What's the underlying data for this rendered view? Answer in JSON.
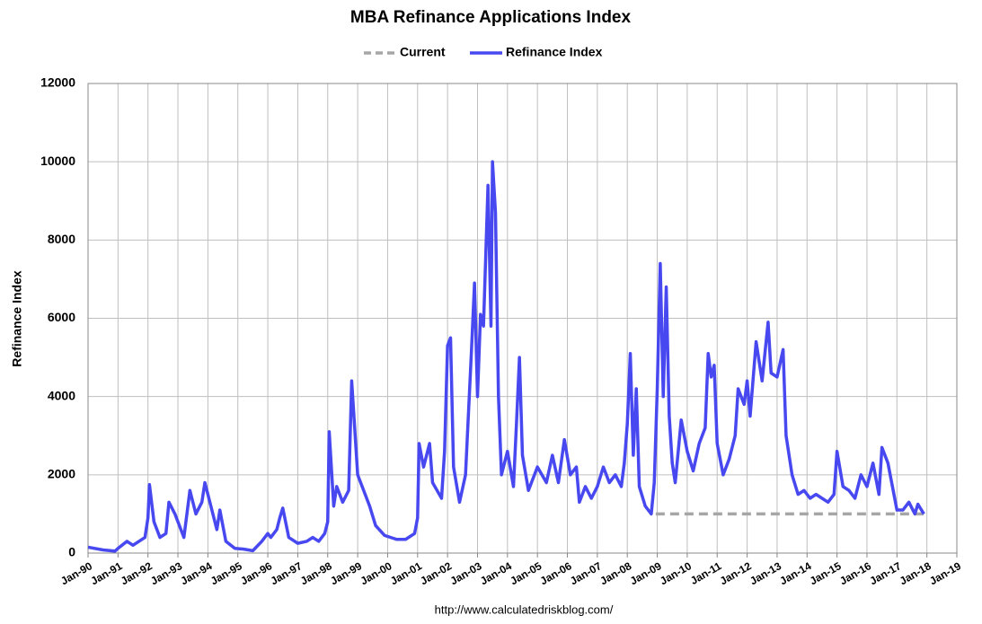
{
  "chart_data": {
    "type": "line",
    "title": "MBA Refinance Applications Index",
    "ylabel": "Refinance Index",
    "source": "http://www.calculatedriskblog.com/",
    "xlim": [
      1990,
      2019
    ],
    "ylim": [
      0,
      12000
    ],
    "yticks": [
      0,
      2000,
      4000,
      6000,
      8000,
      10000,
      12000
    ],
    "grid": true,
    "legend": "top",
    "xticks": [
      {
        "value": 1990,
        "label": "Jan-90"
      },
      {
        "value": 1991,
        "label": "Jan-91"
      },
      {
        "value": 1992,
        "label": "Jan-92"
      },
      {
        "value": 1993,
        "label": "Jan-93"
      },
      {
        "value": 1994,
        "label": "Jan-94"
      },
      {
        "value": 1995,
        "label": "Jan-95"
      },
      {
        "value": 1996,
        "label": "Jan-96"
      },
      {
        "value": 1997,
        "label": "Jan-97"
      },
      {
        "value": 1998,
        "label": "Jan-98"
      },
      {
        "value": 1999,
        "label": "Jan-99"
      },
      {
        "value": 2000,
        "label": "Jan-00"
      },
      {
        "value": 2001,
        "label": "Jan-01"
      },
      {
        "value": 2002,
        "label": "Jan-02"
      },
      {
        "value": 2003,
        "label": "Jan-03"
      },
      {
        "value": 2004,
        "label": "Jan-04"
      },
      {
        "value": 2005,
        "label": "Jan-05"
      },
      {
        "value": 2006,
        "label": "Jan-06"
      },
      {
        "value": 2007,
        "label": "Jan-07"
      },
      {
        "value": 2008,
        "label": "Jan-08"
      },
      {
        "value": 2009,
        "label": "Jan-09"
      },
      {
        "value": 2010,
        "label": "Jan-10"
      },
      {
        "value": 2011,
        "label": "Jan-11"
      },
      {
        "value": 2012,
        "label": "Jan-12"
      },
      {
        "value": 2013,
        "label": "Jan-13"
      },
      {
        "value": 2014,
        "label": "Jan-14"
      },
      {
        "value": 2015,
        "label": "Jan-15"
      },
      {
        "value": 2016,
        "label": "Jan-16"
      },
      {
        "value": 2017,
        "label": "Jan-17"
      },
      {
        "value": 2018,
        "label": "Jan-18"
      },
      {
        "value": 2019,
        "label": "Jan-19"
      }
    ],
    "series": [
      {
        "name": "Current",
        "color": "#a6a6a6",
        "dashed": true,
        "x": [
          2008.95,
          2017.95
        ],
        "values": [
          1000,
          1000
        ]
      },
      {
        "name": "Refinance Index",
        "color": "#4848f0",
        "dashed": false,
        "x": [
          1990.0,
          1990.5,
          1990.9,
          1991.0,
          1991.3,
          1991.5,
          1991.9,
          1992.0,
          1992.05,
          1992.2,
          1992.4,
          1992.6,
          1992.7,
          1992.9,
          1993.1,
          1993.2,
          1993.4,
          1993.6,
          1993.8,
          1993.9,
          1994.1,
          1994.3,
          1994.4,
          1994.6,
          1994.9,
          1995.2,
          1995.5,
          1995.8,
          1996.0,
          1996.1,
          1996.3,
          1996.4,
          1996.5,
          1996.7,
          1997.0,
          1997.3,
          1997.5,
          1997.7,
          1997.9,
          1998.0,
          1998.05,
          1998.2,
          1998.3,
          1998.5,
          1998.7,
          1998.8,
          1999.0,
          1999.2,
          1999.4,
          1999.6,
          1999.9,
          2000.3,
          2000.6,
          2000.9,
          2001.0,
          2001.05,
          2001.2,
          2001.4,
          2001.5,
          2001.8,
          2001.9,
          2002.0,
          2002.1,
          2002.2,
          2002.4,
          2002.6,
          2002.8,
          2002.9,
          2003.0,
          2003.1,
          2003.2,
          2003.35,
          2003.45,
          2003.5,
          2003.6,
          2003.7,
          2003.8,
          2004.0,
          2004.2,
          2004.3,
          2004.4,
          2004.5,
          2004.7,
          2004.9,
          2005.0,
          2005.3,
          2005.5,
          2005.7,
          2005.9,
          2006.1,
          2006.3,
          2006.4,
          2006.6,
          2006.8,
          2007.0,
          2007.2,
          2007.4,
          2007.6,
          2007.8,
          2007.9,
          2008.0,
          2008.1,
          2008.2,
          2008.3,
          2008.4,
          2008.6,
          2008.8,
          2008.9,
          2009.0,
          2009.1,
          2009.2,
          2009.3,
          2009.4,
          2009.5,
          2009.6,
          2009.8,
          2010.0,
          2010.2,
          2010.4,
          2010.6,
          2010.7,
          2010.8,
          2010.9,
          2011.0,
          2011.2,
          2011.4,
          2011.6,
          2011.7,
          2011.9,
          2012.0,
          2012.1,
          2012.3,
          2012.5,
          2012.7,
          2012.8,
          2013.0,
          2013.2,
          2013.3,
          2013.5,
          2013.7,
          2013.9,
          2014.1,
          2014.3,
          2014.5,
          2014.7,
          2014.9,
          2015.0,
          2015.2,
          2015.4,
          2015.6,
          2015.8,
          2016.0,
          2016.2,
          2016.4,
          2016.5,
          2016.7,
          2016.9,
          2017.0,
          2017.2,
          2017.4,
          2017.6,
          2017.7,
          2017.9
        ],
        "values": [
          150,
          80,
          50,
          120,
          300,
          200,
          400,
          900,
          1750,
          800,
          400,
          500,
          1300,
          1000,
          600,
          400,
          1600,
          1000,
          1300,
          1800,
          1200,
          600,
          1100,
          300,
          120,
          100,
          60,
          300,
          500,
          400,
          600,
          900,
          1150,
          400,
          250,
          300,
          400,
          300,
          500,
          800,
          3100,
          1200,
          1700,
          1300,
          1600,
          4400,
          2000,
          1600,
          1200,
          700,
          450,
          350,
          350,
          500,
          900,
          2800,
          2200,
          2800,
          1800,
          1400,
          2600,
          5300,
          5500,
          2200,
          1300,
          2000,
          5200,
          6900,
          4000,
          6100,
          5800,
          9400,
          5800,
          10000,
          8700,
          4000,
          2000,
          2600,
          1700,
          3300,
          5000,
          2500,
          1600,
          2000,
          2200,
          1800,
          2500,
          1800,
          2900,
          2000,
          2200,
          1300,
          1700,
          1400,
          1700,
          2200,
          1800,
          2000,
          1700,
          2300,
          3300,
          5100,
          2500,
          4200,
          1700,
          1200,
          1000,
          1800,
          4200,
          7400,
          4000,
          6800,
          3500,
          2300,
          1800,
          3400,
          2600,
          2100,
          2800,
          3200,
          5100,
          4500,
          4800,
          2800,
          2000,
          2400,
          3000,
          4200,
          3800,
          4400,
          3500,
          5400,
          4400,
          5900,
          4600,
          4500,
          5200,
          3000,
          2000,
          1500,
          1600,
          1400,
          1500,
          1400,
          1300,
          1500,
          2600,
          1700,
          1600,
          1400,
          2000,
          1700,
          2300,
          1500,
          2700,
          2300,
          1500,
          1100,
          1100,
          1300,
          1000,
          1250,
          1000
        ]
      }
    ]
  }
}
